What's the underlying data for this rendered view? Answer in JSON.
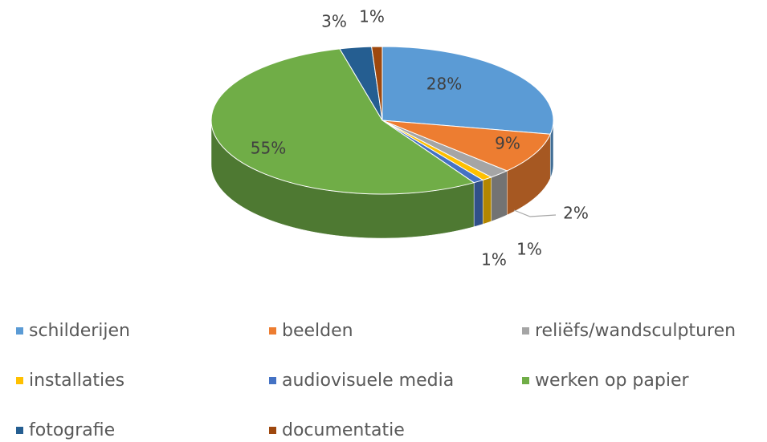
{
  "chart_data": {
    "type": "pie",
    "categories": [
      "schilderijen",
      "beelden",
      "reliëfs/wandsculpturen",
      "installaties",
      "audiovisuele media",
      "werken op papier",
      "fotografie",
      "documentatie"
    ],
    "values": [
      28,
      9,
      2,
      1,
      1,
      55,
      3,
      1
    ],
    "value_labels": [
      "28%",
      "9%",
      "2%",
      "1%",
      "1%",
      "55%",
      "3%",
      "1%"
    ],
    "colors": [
      "#5b9bd5",
      "#ed7d31",
      "#a5a5a5",
      "#ffc000",
      "#4472c4",
      "#70ad47",
      "#255e91",
      "#9e480e"
    ],
    "legend": "bottom"
  }
}
